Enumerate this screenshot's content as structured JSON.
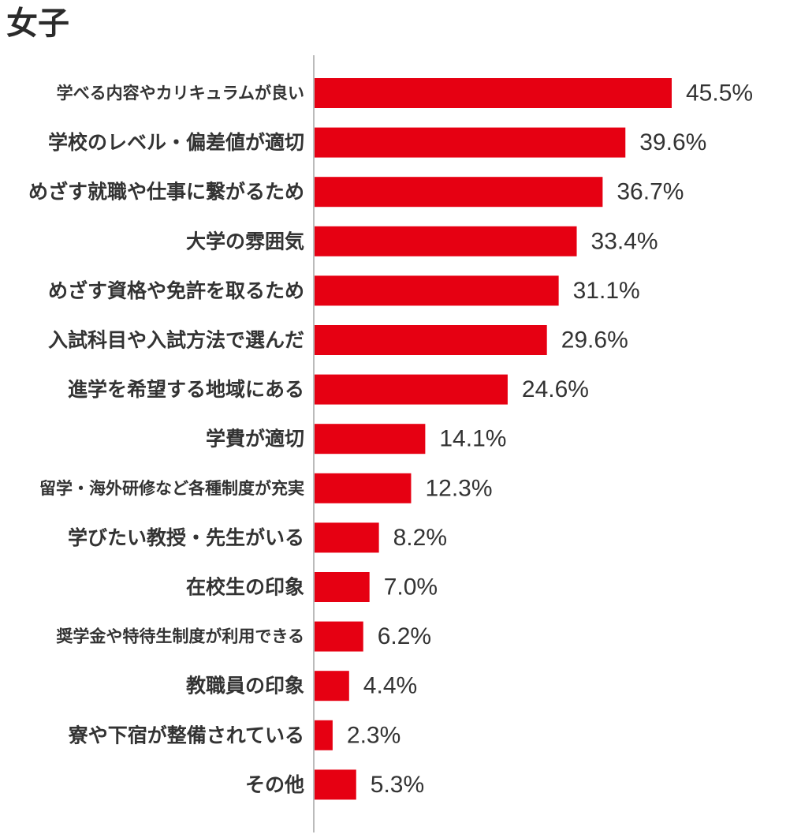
{
  "chart_data": {
    "type": "bar",
    "orientation": "horizontal",
    "title": "女子",
    "categories": [
      "学べる内容やカリキュラムが良い",
      "学校のレベル・偏差値が適切",
      "めざす就職や仕事に繋がるため",
      "大学の雰囲気",
      "めざす資格や免許を取るため",
      "入試科目や入試方法で選んだ",
      "進学を希望する地域にある",
      "学費が適切",
      "留学・海外研修など各種制度が充実",
      "学びたい教授・先生がいる",
      "在校生の印象",
      "奨学金や特待生制度が利用できる",
      "教職員の印象",
      "寮や下宿が整備されている",
      "その他"
    ],
    "values": [
      45.5,
      39.6,
      36.7,
      33.4,
      31.1,
      29.6,
      24.6,
      14.1,
      12.3,
      8.2,
      7.0,
      6.2,
      4.4,
      2.3,
      5.3
    ],
    "value_labels": [
      "45.5%",
      "39.6%",
      "36.7%",
      "33.4%",
      "31.1%",
      "29.6%",
      "24.6%",
      "14.1%",
      "12.3%",
      "8.2%",
      "7.0%",
      "6.2%",
      "4.4%",
      "2.3%",
      "5.3%"
    ],
    "unit": "%",
    "xlim": [
      0,
      50
    ],
    "bar_color": "#e60012",
    "axis_color": "#bbbbbb",
    "grid": false,
    "legend": "none"
  }
}
